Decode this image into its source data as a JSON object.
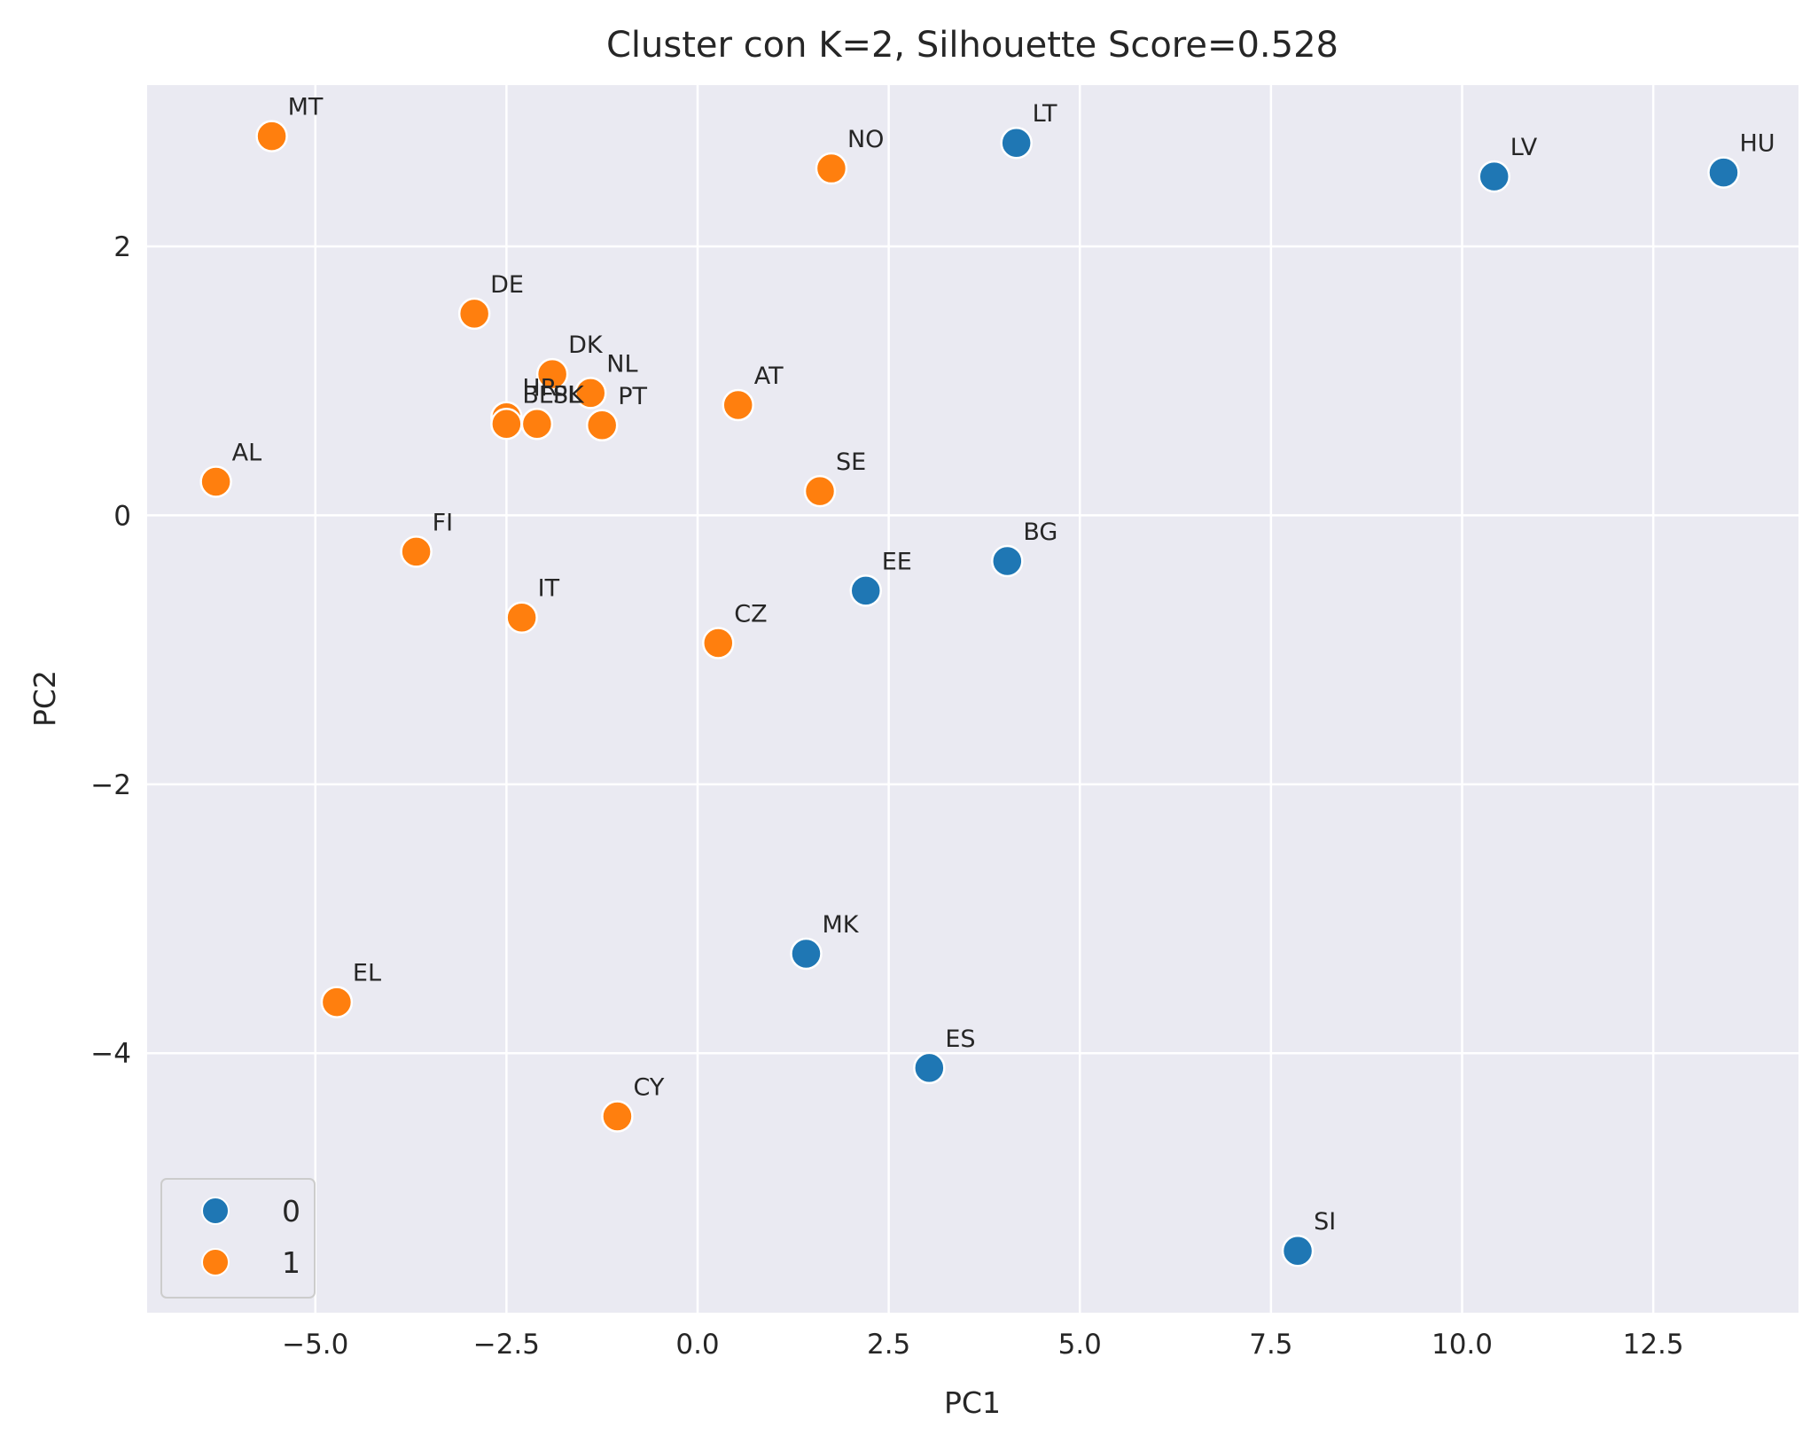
{
  "chart_data": {
    "type": "scatter",
    "title": "Cluster con K=2, Silhouette Score=0.528",
    "xlabel": "PC1",
    "ylabel": "PC2",
    "xlim": [
      -7.2,
      14.4
    ],
    "ylim": [
      -5.93,
      3.2
    ],
    "xticks": [
      -5.0,
      -2.5,
      0.0,
      2.5,
      5.0,
      7.5,
      10.0,
      12.5
    ],
    "xtick_labels": [
      "−5.0",
      "−2.5",
      "0.0",
      "2.5",
      "5.0",
      "7.5",
      "10.0",
      "12.5"
    ],
    "yticks": [
      2,
      0,
      -2,
      -4
    ],
    "ytick_labels": [
      "2",
      "0",
      "−2",
      "−4"
    ],
    "grid": true,
    "legend_position": "lower-left",
    "colors": {
      "0": "#1f77b4",
      "1": "#ff7f0e",
      "background": "#eaeaf2",
      "grid": "#ffffff"
    },
    "series": [
      {
        "name": "0",
        "points": [
          {
            "label": "LT",
            "x": 4.17,
            "y": 2.77
          },
          {
            "label": "LV",
            "x": 10.42,
            "y": 2.52
          },
          {
            "label": "HU",
            "x": 13.42,
            "y": 2.55
          },
          {
            "label": "BG",
            "x": 4.05,
            "y": -0.34
          },
          {
            "label": "EE",
            "x": 2.2,
            "y": -0.56
          },
          {
            "label": "MK",
            "x": 1.42,
            "y": -3.26
          },
          {
            "label": "ES",
            "x": 3.03,
            "y": -4.11
          },
          {
            "label": "SI",
            "x": 7.85,
            "y": -5.47
          }
        ]
      },
      {
        "name": "1",
        "points": [
          {
            "label": "MT",
            "x": -5.57,
            "y": 2.82
          },
          {
            "label": "NO",
            "x": 1.75,
            "y": 2.58
          },
          {
            "label": "DE",
            "x": -2.92,
            "y": 1.5
          },
          {
            "label": "DK",
            "x": -1.9,
            "y": 1.05
          },
          {
            "label": "NL",
            "x": -1.4,
            "y": 0.91
          },
          {
            "label": "HR",
            "x": -2.5,
            "y": 0.73
          },
          {
            "label": "BE",
            "x": -2.5,
            "y": 0.68
          },
          {
            "label": "SK",
            "x": -2.1,
            "y": 0.68
          },
          {
            "label": "PL",
            "x": -2.1,
            "y": 0.68
          },
          {
            "label": "PT",
            "x": -1.25,
            "y": 0.67
          },
          {
            "label": "AT",
            "x": 0.53,
            "y": 0.82
          },
          {
            "label": "AL",
            "x": -6.3,
            "y": 0.25
          },
          {
            "label": "SE",
            "x": 1.6,
            "y": 0.18
          },
          {
            "label": "FI",
            "x": -3.68,
            "y": -0.27
          },
          {
            "label": "IT",
            "x": -2.3,
            "y": -0.76
          },
          {
            "label": "CZ",
            "x": 0.27,
            "y": -0.95
          },
          {
            "label": "EL",
            "x": -4.72,
            "y": -3.62
          },
          {
            "label": "CY",
            "x": -1.05,
            "y": -4.47
          }
        ]
      }
    ]
  }
}
